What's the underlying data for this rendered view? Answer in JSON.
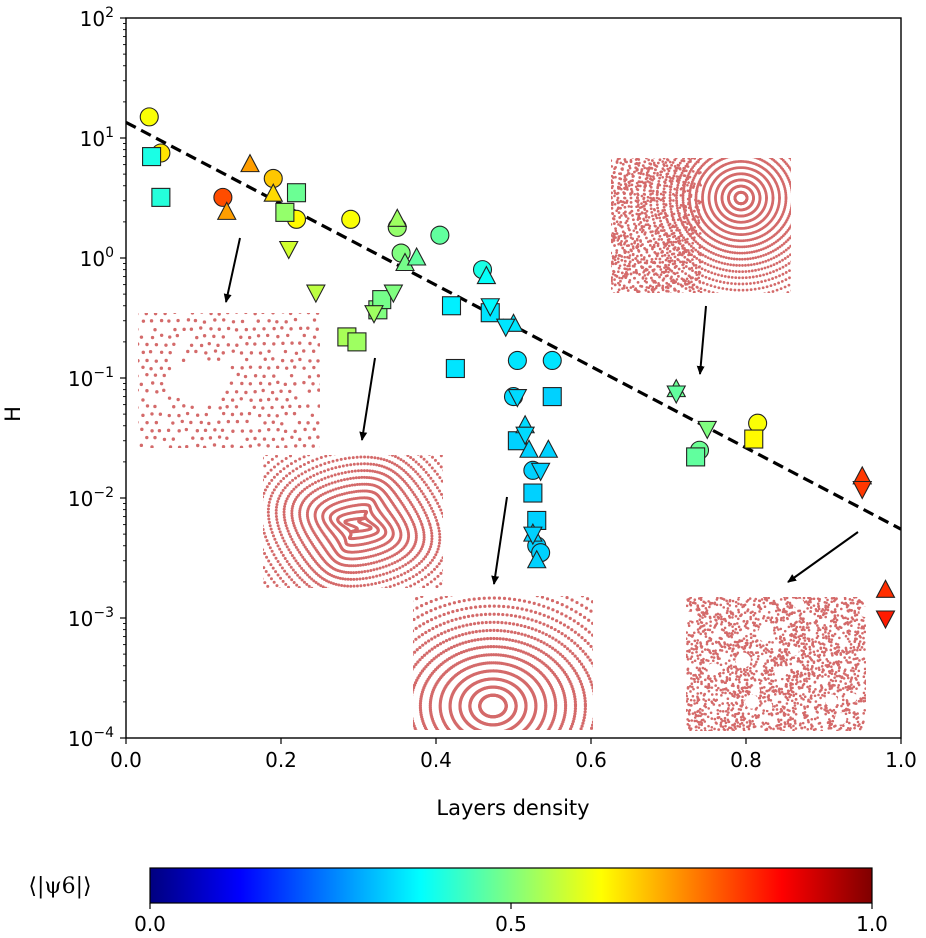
{
  "chart_data": {
    "type": "scatter",
    "xlabel": "Layers density",
    "ylabel": "H",
    "xlim": [
      0.0,
      1.0
    ],
    "ylim": [
      0.0001,
      100
    ],
    "yscale": "log",
    "x_ticks": [
      "0.0",
      "0.2",
      "0.4",
      "0.6",
      "0.8",
      "1.0"
    ],
    "y_ticks": [
      {
        "base": "10",
        "exp": "2"
      },
      {
        "base": "10",
        "exp": "1"
      },
      {
        "base": "10",
        "exp": "0"
      },
      {
        "base": "10",
        "exp": "−1"
      },
      {
        "base": "10",
        "exp": "−2"
      },
      {
        "base": "10",
        "exp": "−3"
      },
      {
        "base": "10",
        "exp": "−4"
      }
    ],
    "fit_line": {
      "style": "dashed",
      "color": "#000000",
      "points": [
        [
          0.0,
          13.5
        ],
        [
          1.0,
          0.0055
        ]
      ]
    },
    "colorbar": {
      "label": "⟨|ψ6|⟩",
      "colormap": "jet",
      "range": [
        0.0,
        1.0
      ],
      "ticks": [
        "0.0",
        "0.5",
        "1.0"
      ]
    },
    "series": [
      {
        "marker": "circle",
        "points": [
          {
            "x": 0.03,
            "y": 15,
            "c": 0.62
          },
          {
            "x": 0.045,
            "y": 7.5,
            "c": 0.65
          },
          {
            "x": 0.125,
            "y": 3.2,
            "c": 0.8
          },
          {
            "x": 0.19,
            "y": 4.6,
            "c": 0.68
          },
          {
            "x": 0.22,
            "y": 2.1,
            "c": 0.63
          },
          {
            "x": 0.29,
            "y": 2.1,
            "c": 0.62
          },
          {
            "x": 0.35,
            "y": 1.8,
            "c": 0.52
          },
          {
            "x": 0.355,
            "y": 1.1,
            "c": 0.5
          },
          {
            "x": 0.405,
            "y": 1.55,
            "c": 0.47
          },
          {
            "x": 0.46,
            "y": 0.8,
            "c": 0.4
          },
          {
            "x": 0.505,
            "y": 0.14,
            "c": 0.35
          },
          {
            "x": 0.55,
            "y": 0.14,
            "c": 0.35
          },
          {
            "x": 0.5,
            "y": 0.07,
            "c": 0.34
          },
          {
            "x": 0.525,
            "y": 0.017,
            "c": 0.33
          },
          {
            "x": 0.53,
            "y": 0.004,
            "c": 0.33
          },
          {
            "x": 0.535,
            "y": 0.0035,
            "c": 0.33
          },
          {
            "x": 0.74,
            "y": 0.025,
            "c": 0.48
          },
          {
            "x": 0.815,
            "y": 0.042,
            "c": 0.62
          }
        ]
      },
      {
        "marker": "square",
        "points": [
          {
            "x": 0.033,
            "y": 7.0,
            "c": 0.4
          },
          {
            "x": 0.045,
            "y": 3.2,
            "c": 0.41
          },
          {
            "x": 0.205,
            "y": 2.4,
            "c": 0.52
          },
          {
            "x": 0.22,
            "y": 3.5,
            "c": 0.48
          },
          {
            "x": 0.285,
            "y": 0.22,
            "c": 0.54
          },
          {
            "x": 0.298,
            "y": 0.2,
            "c": 0.53
          },
          {
            "x": 0.325,
            "y": 0.37,
            "c": 0.5
          },
          {
            "x": 0.33,
            "y": 0.45,
            "c": 0.49
          },
          {
            "x": 0.42,
            "y": 0.4,
            "c": 0.36
          },
          {
            "x": 0.425,
            "y": 0.12,
            "c": 0.35
          },
          {
            "x": 0.47,
            "y": 0.35,
            "c": 0.35
          },
          {
            "x": 0.505,
            "y": 0.03,
            "c": 0.33
          },
          {
            "x": 0.525,
            "y": 0.011,
            "c": 0.33
          },
          {
            "x": 0.53,
            "y": 0.0065,
            "c": 0.33
          },
          {
            "x": 0.55,
            "y": 0.07,
            "c": 0.33
          },
          {
            "x": 0.735,
            "y": 0.022,
            "c": 0.47
          },
          {
            "x": 0.81,
            "y": 0.031,
            "c": 0.63
          }
        ]
      },
      {
        "marker": "triangle-up",
        "points": [
          {
            "x": 0.13,
            "y": 2.4,
            "c": 0.72
          },
          {
            "x": 0.16,
            "y": 6.0,
            "c": 0.72
          },
          {
            "x": 0.19,
            "y": 3.4,
            "c": 0.66
          },
          {
            "x": 0.35,
            "y": 2.1,
            "c": 0.53
          },
          {
            "x": 0.36,
            "y": 0.9,
            "c": 0.49
          },
          {
            "x": 0.375,
            "y": 1.0,
            "c": 0.47
          },
          {
            "x": 0.465,
            "y": 0.7,
            "c": 0.38
          },
          {
            "x": 0.5,
            "y": 0.28,
            "c": 0.35
          },
          {
            "x": 0.515,
            "y": 0.04,
            "c": 0.34
          },
          {
            "x": 0.52,
            "y": 0.025,
            "c": 0.33
          },
          {
            "x": 0.525,
            "y": 0.005,
            "c": 0.33
          },
          {
            "x": 0.53,
            "y": 0.003,
            "c": 0.33
          },
          {
            "x": 0.545,
            "y": 0.025,
            "c": 0.33
          },
          {
            "x": 0.71,
            "y": 0.08,
            "c": 0.48
          },
          {
            "x": 0.95,
            "y": 0.015,
            "c": 0.82
          },
          {
            "x": 0.98,
            "y": 0.0017,
            "c": 0.83
          }
        ]
      },
      {
        "marker": "triangle-down",
        "points": [
          {
            "x": 0.21,
            "y": 1.2,
            "c": 0.58
          },
          {
            "x": 0.245,
            "y": 0.52,
            "c": 0.56
          },
          {
            "x": 0.32,
            "y": 0.35,
            "c": 0.53
          },
          {
            "x": 0.345,
            "y": 0.52,
            "c": 0.5
          },
          {
            "x": 0.47,
            "y": 0.4,
            "c": 0.37
          },
          {
            "x": 0.49,
            "y": 0.27,
            "c": 0.35
          },
          {
            "x": 0.505,
            "y": 0.07,
            "c": 0.34
          },
          {
            "x": 0.515,
            "y": 0.034,
            "c": 0.34
          },
          {
            "x": 0.525,
            "y": 0.005,
            "c": 0.33
          },
          {
            "x": 0.535,
            "y": 0.017,
            "c": 0.33
          },
          {
            "x": 0.71,
            "y": 0.075,
            "c": 0.47
          },
          {
            "x": 0.75,
            "y": 0.038,
            "c": 0.5
          },
          {
            "x": 0.95,
            "y": 0.012,
            "c": 0.82
          },
          {
            "x": 0.98,
            "y": 0.001,
            "c": 0.85
          }
        ]
      }
    ],
    "insets": [
      {
        "pattern": "sparse-hex-with-void",
        "points_to": [
          0.13,
          0.4
        ]
      },
      {
        "pattern": "labyrinth",
        "points_to": [
          0.305,
          0.028
        ]
      },
      {
        "pattern": "stripes",
        "points_to": [
          0.475,
          0.0017
        ]
      },
      {
        "pattern": "dense-mixed",
        "points_to": [
          0.74,
          0.09
        ]
      },
      {
        "pattern": "dense-disordered",
        "points_to": [
          0.85,
          0.0018
        ]
      }
    ]
  }
}
